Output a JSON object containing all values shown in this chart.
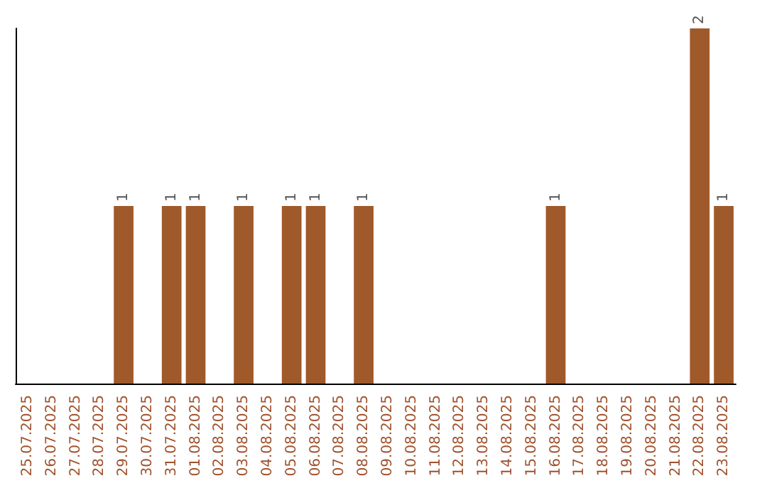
{
  "chart_data": {
    "type": "bar",
    "categories": [
      "25.07.2025",
      "26.07.2025",
      "27.07.2025",
      "28.07.2025",
      "29.07.2025",
      "30.07.2025",
      "31.07.2025",
      "01.08.2025",
      "02.08.2025",
      "03.08.2025",
      "04.08.2025",
      "05.08.2025",
      "06.08.2025",
      "07.08.2025",
      "08.08.2025",
      "09.08.2025",
      "10.08.2025",
      "11.08.2025",
      "12.08.2025",
      "13.08.2025",
      "14.08.2025",
      "15.08.2025",
      "16.08.2025",
      "17.08.2025",
      "18.08.2025",
      "19.08.2025",
      "20.08.2025",
      "21.08.2025",
      "22.08.2025",
      "23.08.2025"
    ],
    "values": [
      0,
      0,
      0,
      0,
      1,
      0,
      1,
      1,
      0,
      1,
      0,
      1,
      1,
      0,
      1,
      0,
      0,
      0,
      0,
      0,
      0,
      0,
      1,
      0,
      0,
      0,
      0,
      0,
      2,
      1
    ],
    "value_labels": [
      null,
      null,
      null,
      null,
      "1",
      null,
      "1",
      "1",
      null,
      "1",
      null,
      "1",
      "1",
      null,
      "1",
      null,
      null,
      null,
      null,
      null,
      null,
      null,
      "1",
      null,
      null,
      null,
      null,
      null,
      "2",
      "1"
    ],
    "color": "#a0592a",
    "ylim": [
      0,
      2
    ],
    "tick_labels": "x"
  }
}
